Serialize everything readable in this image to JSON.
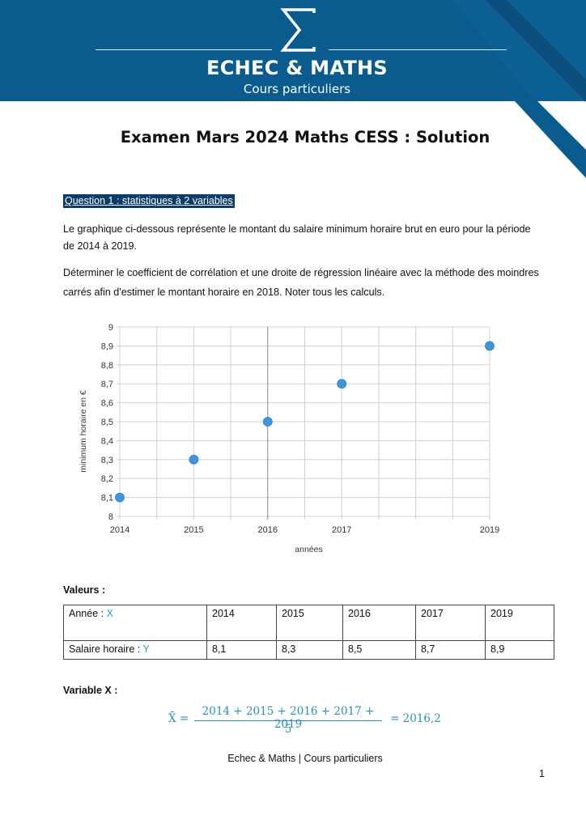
{
  "header": {
    "brand_name": "ECHEC & MATHS",
    "brand_subtitle": "Cours particuliers",
    "logo_icon": "sigma-icon",
    "colors": {
      "primary": "#0b5c8e",
      "dark": "#0b3d6b",
      "accent": "#1c9fd6"
    }
  },
  "document": {
    "title": "Examen Mars 2024 Maths CESS : Solution",
    "question_label": "Question 1 : statistiques à 2 variables",
    "paragraphs": [
      "Le graphique ci-dessous représente le montant du salaire minimum horaire brut en euro pour la période de 2014 à 2019.",
      "Déterminer le coefficient de corrélation et une droite de régression linéaire avec la méthode des moindres carrés afin d'estimer le montant horaire en 2018. Noter tous les calculs."
    ]
  },
  "chart_data": {
    "type": "scatter",
    "x": [
      2014,
      2015,
      2016,
      2017,
      2019
    ],
    "y": [
      8.1,
      8.3,
      8.5,
      8.7,
      8.9
    ],
    "title": "",
    "xlabel": "années",
    "ylabel": "minimum horaire en €",
    "xlim": [
      2014,
      2019
    ],
    "ylim": [
      8,
      9
    ],
    "x_ticks": [
      "2014",
      "2015",
      "2016",
      "2017",
      "2019"
    ],
    "y_ticks": [
      "8",
      "8,1",
      "8,2",
      "8,3",
      "8,4",
      "8,5",
      "8,6",
      "8,7",
      "8,8",
      "8,9",
      "9"
    ],
    "grid": true,
    "point_color": "#3d95e0"
  },
  "values_section": {
    "label": "Valeurs :",
    "row_x": {
      "label": "Année : ",
      "var": "X",
      "values": [
        "2014",
        "2015",
        "2016",
        "2017",
        "2019"
      ]
    },
    "row_y": {
      "label": "Salaire horaire : ",
      "var": "Y",
      "values": [
        "8,1",
        "8,3",
        "8,5",
        "8,7",
        "8,9"
      ]
    }
  },
  "variable_x": {
    "label": "Variable X :",
    "symbol": "X̄ =",
    "numerator": "2014 + 2015 + 2016 + 2017 + 2019",
    "denominator": "5",
    "result": "= 2016,2"
  },
  "footer": {
    "text": "Echec & Maths | Cours particuliers",
    "page_number": "1"
  }
}
